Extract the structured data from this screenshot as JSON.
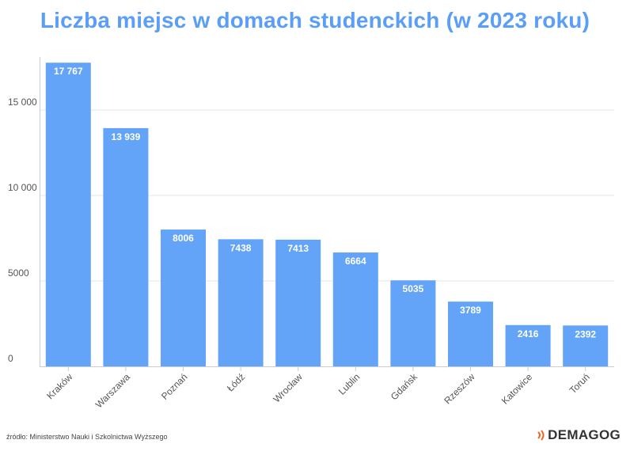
{
  "chart_data": {
    "type": "bar",
    "title": "Liczba miejsc w domach studenckich (w 2023 roku)",
    "categories": [
      "Kraków",
      "Warszawa",
      "Poznań",
      "Łódź",
      "Wrocław",
      "Lublin",
      "Gdańsk",
      "Rzeszów",
      "Katowice",
      "Toruń"
    ],
    "values": [
      17767,
      13939,
      8006,
      7438,
      7413,
      6664,
      5035,
      3789,
      2416,
      2392
    ],
    "value_labels": [
      "17 767",
      "13 939",
      "8006",
      "7438",
      "7413",
      "6664",
      "5035",
      "3789",
      "2416",
      "2392"
    ],
    "yticks": [
      0,
      5000,
      10000,
      15000
    ],
    "ytick_labels": [
      "0",
      "5000",
      "10 000",
      "15 000"
    ],
    "ylim": [
      0,
      18000
    ],
    "xlabel": "",
    "ylabel": "",
    "grid": true,
    "colors": {
      "bar": "#64a4f8",
      "title": "#5b9ef7",
      "grid": "#e4e4e4",
      "logo_accent": "#f26522"
    }
  },
  "footer": {
    "source": "źródło: Ministerstwo Nauki i Szkolnictwa Wyższego",
    "logo_text": "DEMAGOG",
    "logo_icon": "signal-waves-icon"
  }
}
